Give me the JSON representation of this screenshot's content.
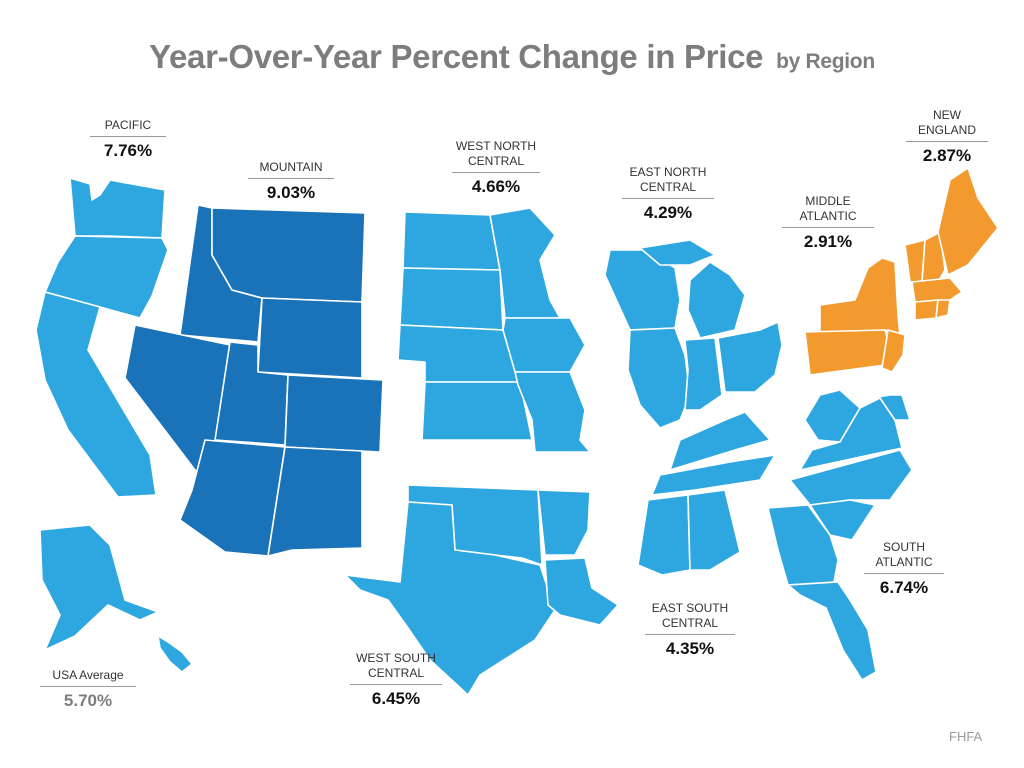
{
  "title": {
    "main": "Year-Over-Year Percent Change in Price",
    "sub": "by Region"
  },
  "colors": {
    "standard": "#2ea7e0",
    "highest": "#1a72b8",
    "lowest": "#f29a2e",
    "border": "#ffffff"
  },
  "regions": {
    "pacific": {
      "name": "PACIFIC",
      "value": "7.76%"
    },
    "mountain": {
      "name": "MOUNTAIN",
      "value": "9.03%"
    },
    "west_north_central": {
      "name": "WEST NORTH CENTRAL",
      "value": "4.66%"
    },
    "east_north_central": {
      "name": "EAST NORTH CENTRAL",
      "value": "4.29%"
    },
    "middle_atlantic": {
      "name": "MIDDLE ATLANTIC",
      "value": "2.91%"
    },
    "new_england": {
      "name": "NEW ENGLAND",
      "value": "2.87%"
    },
    "south_atlantic": {
      "name": "SOUTH ATLANTIC",
      "value": "6.74%"
    },
    "east_south_central": {
      "name": "EAST SOUTH CENTRAL",
      "value": "4.35%"
    },
    "west_south_central": {
      "name": "WEST SOUTH CENTRAL",
      "value": "6.45%"
    }
  },
  "usa_average": {
    "label": "USA Average",
    "value": "5.70%"
  },
  "source": "FHFA"
}
